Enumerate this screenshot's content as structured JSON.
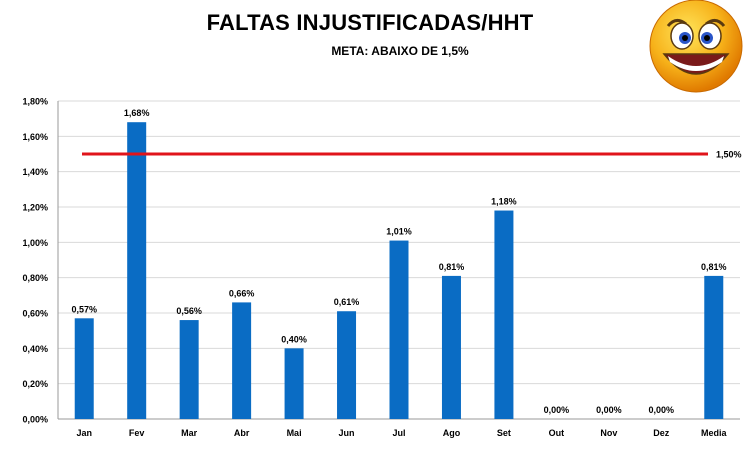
{
  "chart_data": {
    "type": "bar",
    "title": "FALTAS INJUSTIFICADAS/HHT",
    "subtitle": "META: ABAIXO DE 1,5%",
    "categories": [
      "Jan",
      "Fev",
      "Mar",
      "Abr",
      "Mai",
      "Jun",
      "Jul",
      "Ago",
      "Set",
      "Out",
      "Nov",
      "Dez",
      "Media"
    ],
    "values": [
      0.57,
      1.68,
      0.56,
      0.66,
      0.4,
      0.61,
      1.01,
      0.81,
      1.18,
      0.0,
      0.0,
      0.0,
      0.81
    ],
    "value_labels": [
      "0,57%",
      "1,68%",
      "0,56%",
      "0,66%",
      "0,40%",
      "0,61%",
      "1,01%",
      "0,81%",
      "1,18%",
      "0,00%",
      "0,00%",
      "0,00%",
      "0,81%"
    ],
    "y_ticks": [
      0,
      0.2,
      0.4,
      0.6,
      0.8,
      1.0,
      1.2,
      1.4,
      1.6,
      1.8
    ],
    "y_tick_labels": [
      "0,00%",
      "0,20%",
      "0,40%",
      "0,60%",
      "0,80%",
      "1,00%",
      "1,20%",
      "1,40%",
      "1,60%",
      "1,80%"
    ],
    "ylim": [
      0,
      1.8
    ],
    "grid": true,
    "target": {
      "value": 1.5,
      "label": "1,50%",
      "color": "#e0141b"
    },
    "bar_color": "#0a6cc4",
    "legend": "none",
    "icon": "smiley-face-icon"
  }
}
